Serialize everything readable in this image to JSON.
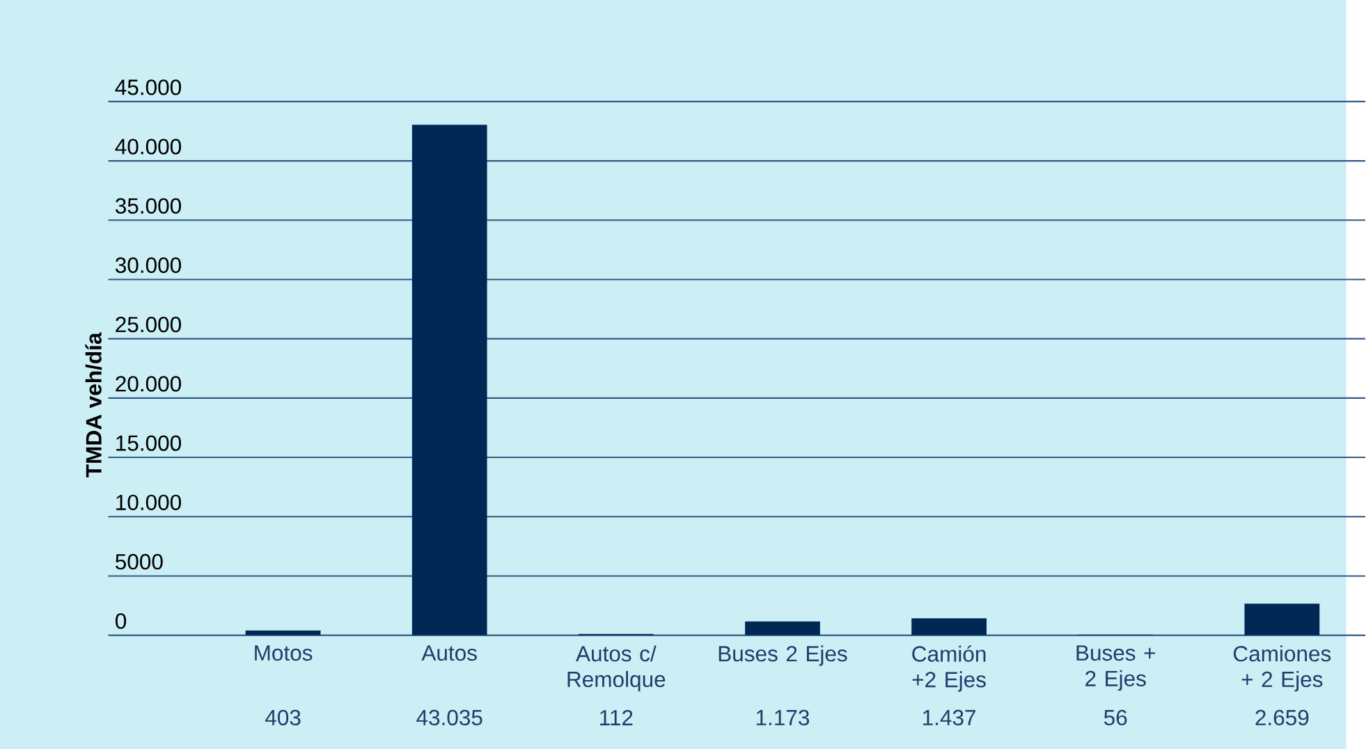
{
  "chart_data": {
    "type": "bar",
    "ylabel": "TMDA veh/día",
    "categories": [
      "Motos",
      "Autos",
      "Autos c/ Remolque",
      "Buses 2 Ejes",
      "Camión +2 Ejes",
      "Buses + 2 Ejes",
      "Camiones + 2 Ejes"
    ],
    "values": [
      403,
      43035,
      112,
      1173,
      1437,
      56,
      2659
    ],
    "value_labels": [
      "403",
      "43.035",
      "112",
      "1.173",
      "1.437",
      "56",
      "2.659"
    ],
    "color": "#002855",
    "ylim": [
      0,
      45000
    ],
    "yticks": [
      0,
      5000,
      {
        "value": 10000,
        "label": "10.000"
      },
      {
        "value": 15000,
        "label": "15.000"
      },
      {
        "value": 20000,
        "label": "20.000"
      },
      {
        "value": 25000,
        "label": "25.000"
      },
      {
        "value": 30000,
        "label": "30.000"
      },
      {
        "value": 35000,
        "label": "35.000"
      },
      {
        "value": 40000,
        "label": "40.000"
      },
      {
        "value": 45000,
        "label": "45.000"
      }
    ],
    "grid": "y"
  }
}
